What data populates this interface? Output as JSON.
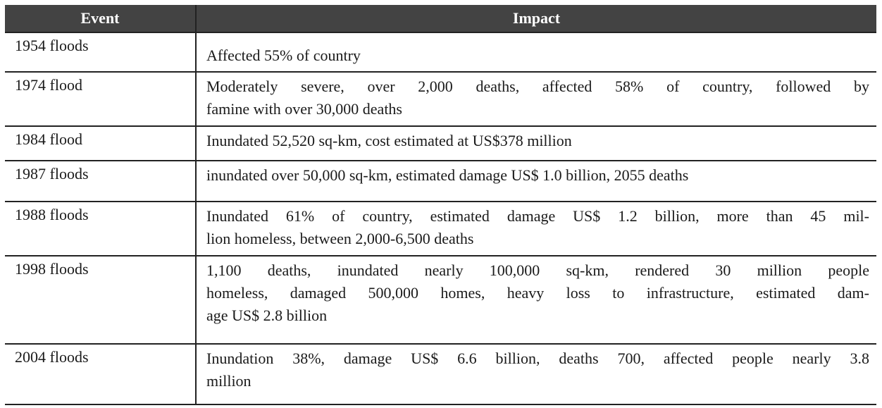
{
  "headers": {
    "event": "Event",
    "impact": "Impact"
  },
  "rows": [
    {
      "event": "1954 floods",
      "impact": [
        "Affected 55% of country"
      ]
    },
    {
      "event": "1974 flood",
      "impact": [
        "Moderately severe, over 2,000 deaths, affected 58% of country, followed by",
        "famine with over 30,000 deaths"
      ]
    },
    {
      "event": "1984 flood",
      "impact": [
        "Inundated 52,520 sq-km, cost estimated at US$378 million"
      ]
    },
    {
      "event": "1987 floods",
      "impact": [
        "inundated over 50,000 sq-km, estimated damage US$ 1.0 billion, 2055 deaths"
      ]
    },
    {
      "event": "1988 floods",
      "impact": [
        "Inundated 61% of country, estimated damage US$ 1.2 billion, more than 45 mil-",
        "lion homeless, between 2,000-6,500 deaths"
      ]
    },
    {
      "event": "1998 floods",
      "impact": [
        "1,100 deaths, inundated nearly 100,000 sq-km, rendered 30 million people",
        "homeless, damaged 500,000 homes, heavy loss to infrastructure, estimated dam-",
        "age US$ 2.8 billion"
      ]
    },
    {
      "event": "2004 floods",
      "impact": [
        "Inundation 38%, damage US$ 6.6 billion, deaths 700, affected people nearly 3.8",
        "million"
      ]
    }
  ]
}
